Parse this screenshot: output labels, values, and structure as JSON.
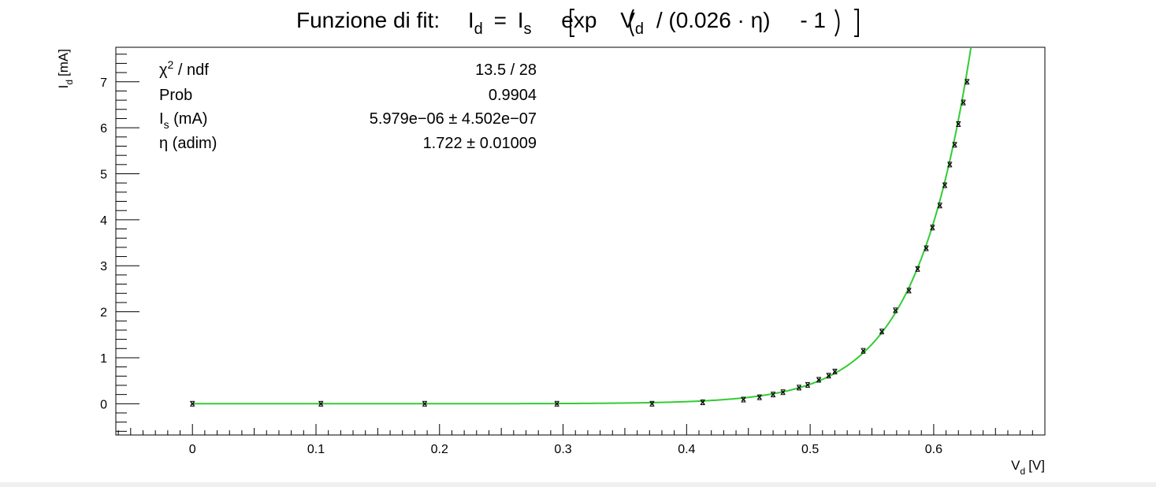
{
  "chart_data": {
    "type": "scatter",
    "title": {
      "prefix": "Funzione di fit:",
      "lhs_main": "I",
      "lhs_sub": "d",
      "eq": "=",
      "is_main": "I",
      "is_sub": "s",
      "exp_label": "exp",
      "vd_main": "V",
      "vd_sub": "d",
      "rest": "/ (0.026 · η)",
      "minus_one": "- 1"
    },
    "xlabel": {
      "main": "V",
      "sub": "d",
      "unit": "[V]"
    },
    "ylabel": {
      "main": "I",
      "sub": "d",
      "unit": "[mA]"
    },
    "xlim": [
      -0.062,
      0.69
    ],
    "ylim": [
      -0.68,
      7.75
    ],
    "x_ticks": [
      "0",
      "0.1",
      "0.2",
      "0.3",
      "0.4",
      "0.5",
      "0.6"
    ],
    "y_ticks": [
      "0",
      "1",
      "2",
      "3",
      "4",
      "5",
      "6",
      "7"
    ],
    "fit": {
      "Is": 5.979e-06,
      "eta": 1.722,
      "color": "#33cc33"
    },
    "marker_color": "#000000",
    "stats": [
      {
        "name_pre": "χ",
        "name_sup": "2",
        "name_sub": "",
        "name_post": " / ndf",
        "value": "13.5 / 28"
      },
      {
        "name_pre": "Prob",
        "name_sup": "",
        "name_sub": "",
        "name_post": "",
        "value": "0.9904"
      },
      {
        "name_pre": "I",
        "name_sup": "",
        "name_sub": "s",
        "name_post": " (mA)",
        "value": "5.979e−06 ± 4.502e−07"
      },
      {
        "name_pre": "η (adim)",
        "name_sup": "",
        "name_sub": "",
        "name_post": "",
        "value": "1.722 ± 0.01009"
      }
    ],
    "points": [
      [
        0.0,
        0.0
      ],
      [
        0.104,
        0.0
      ],
      [
        0.188,
        0.0
      ],
      [
        0.295,
        0.0
      ],
      [
        0.372,
        0.0
      ],
      [
        0.413,
        0.03
      ],
      [
        0.446,
        0.09
      ],
      [
        0.459,
        0.14
      ],
      [
        0.47,
        0.2
      ],
      [
        0.478,
        0.25
      ],
      [
        0.491,
        0.35
      ],
      [
        0.498,
        0.41
      ],
      [
        0.507,
        0.52
      ],
      [
        0.515,
        0.61
      ],
      [
        0.52,
        0.7
      ],
      [
        0.543,
        1.15
      ],
      [
        0.558,
        1.57
      ],
      [
        0.569,
        2.03
      ],
      [
        0.58,
        2.46
      ],
      [
        0.587,
        2.93
      ],
      [
        0.594,
        3.38
      ],
      [
        0.599,
        3.83
      ],
      [
        0.605,
        4.31
      ],
      [
        0.609,
        4.75
      ],
      [
        0.613,
        5.2
      ],
      [
        0.617,
        5.63
      ],
      [
        0.62,
        6.08
      ],
      [
        0.624,
        6.55
      ],
      [
        0.627,
        7.0
      ]
    ]
  }
}
